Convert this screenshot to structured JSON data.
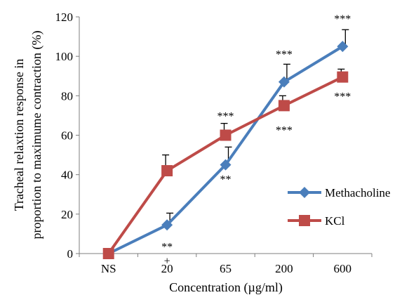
{
  "chart_data": {
    "type": "line",
    "categories": [
      "NS",
      "20",
      "65",
      "200",
      "600"
    ],
    "xlabel": "Concentration (µg/ml)",
    "ylabel_lines": [
      "Tracheal relaxtion response in",
      "proportion to maximume contraction (%)"
    ],
    "ylim": [
      0,
      120
    ],
    "yticks": [
      0,
      20,
      40,
      60,
      80,
      100,
      120
    ],
    "grid": false,
    "legend_position": "right",
    "series": [
      {
        "name": "Methacholine",
        "color": "#4a7ebb",
        "marker": "diamond",
        "values": [
          0,
          14.5,
          45,
          87,
          105
        ],
        "errors": [
          0,
          6,
          9,
          9,
          8.5
        ],
        "annotations": [
          "",
          "**\n+",
          "**",
          "***",
          "***"
        ]
      },
      {
        "name": "KCl",
        "color": "#be4b48",
        "marker": "square",
        "values": [
          0,
          42,
          60,
          75,
          89.5
        ],
        "errors": [
          0,
          8,
          6,
          5,
          4
        ],
        "annotations": [
          "",
          "",
          "***",
          "***",
          "***"
        ]
      }
    ]
  }
}
